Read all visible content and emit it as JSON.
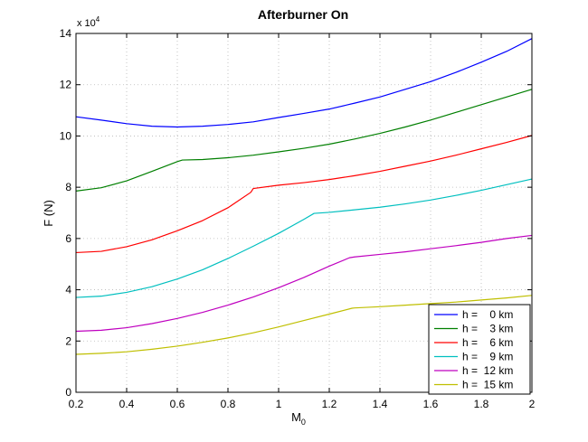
{
  "chart_data": {
    "type": "line",
    "title": "Afterburner On",
    "xlabel": "M",
    "xlabel_sub": "0",
    "ylabel": "F (N)",
    "y_multiplier": "x 10",
    "y_multiplier_exp": "4",
    "xlim": [
      0.2,
      2.0
    ],
    "ylim": [
      0,
      14
    ],
    "x_ticks": [
      "0.2",
      "0.4",
      "0.6",
      "0.8",
      "1",
      "1.2",
      "1.4",
      "1.6",
      "1.8",
      "2"
    ],
    "y_ticks": [
      "0",
      "2",
      "4",
      "6",
      "8",
      "10",
      "12",
      "14"
    ],
    "grid": true,
    "legend_position": "bottom-right",
    "series": [
      {
        "name": "h =    0 km",
        "color": "#0000ff",
        "x": [
          0.2,
          0.3,
          0.4,
          0.5,
          0.6,
          0.7,
          0.8,
          0.9,
          1.0,
          1.1,
          1.2,
          1.3,
          1.4,
          1.5,
          1.6,
          1.7,
          1.8,
          1.9,
          2.0
        ],
        "y": [
          10.75,
          10.62,
          10.48,
          10.38,
          10.35,
          10.38,
          10.45,
          10.55,
          10.72,
          10.88,
          11.05,
          11.28,
          11.52,
          11.82,
          12.12,
          12.48,
          12.88,
          13.3,
          13.8
        ]
      },
      {
        "name": "h =    3 km",
        "color": "#007f00",
        "x": [
          0.2,
          0.3,
          0.4,
          0.5,
          0.6,
          0.62,
          0.7,
          0.8,
          0.9,
          1.0,
          1.1,
          1.2,
          1.3,
          1.4,
          1.5,
          1.6,
          1.7,
          1.8,
          1.9,
          2.0
        ],
        "y": [
          7.85,
          7.98,
          8.25,
          8.62,
          9.0,
          9.06,
          9.08,
          9.15,
          9.25,
          9.38,
          9.52,
          9.68,
          9.88,
          10.1,
          10.35,
          10.62,
          10.92,
          11.22,
          11.52,
          11.82
        ]
      },
      {
        "name": "h =    6 km",
        "color": "#ff0000",
        "x": [
          0.2,
          0.3,
          0.4,
          0.5,
          0.6,
          0.7,
          0.8,
          0.89,
          0.9,
          1.0,
          1.1,
          1.2,
          1.3,
          1.4,
          1.5,
          1.6,
          1.7,
          1.8,
          1.9,
          2.0
        ],
        "y": [
          5.45,
          5.5,
          5.68,
          5.95,
          6.3,
          6.7,
          7.2,
          7.8,
          7.95,
          8.08,
          8.18,
          8.3,
          8.45,
          8.62,
          8.82,
          9.02,
          9.25,
          9.5,
          9.75,
          10.02
        ]
      },
      {
        "name": "h =    9 km",
        "color": "#00bfbf",
        "x": [
          0.2,
          0.3,
          0.4,
          0.5,
          0.6,
          0.7,
          0.8,
          0.9,
          1.0,
          1.1,
          1.14,
          1.2,
          1.3,
          1.4,
          1.5,
          1.6,
          1.7,
          1.8,
          1.9,
          2.0
        ],
        "y": [
          3.7,
          3.75,
          3.9,
          4.12,
          4.42,
          4.78,
          5.22,
          5.7,
          6.2,
          6.75,
          6.98,
          7.02,
          7.12,
          7.22,
          7.35,
          7.5,
          7.68,
          7.88,
          8.1,
          8.32
        ]
      },
      {
        "name": "h =  12 km",
        "color": "#bf00bf",
        "x": [
          0.2,
          0.3,
          0.4,
          0.5,
          0.6,
          0.7,
          0.8,
          0.9,
          1.0,
          1.1,
          1.2,
          1.28,
          1.3,
          1.4,
          1.5,
          1.6,
          1.7,
          1.8,
          1.9,
          2.0
        ],
        "y": [
          2.38,
          2.42,
          2.52,
          2.68,
          2.88,
          3.12,
          3.4,
          3.72,
          4.08,
          4.48,
          4.92,
          5.25,
          5.28,
          5.38,
          5.48,
          5.6,
          5.72,
          5.85,
          6.0,
          6.12
        ]
      },
      {
        "name": "h =  15 km",
        "color": "#bfbf00",
        "x": [
          0.2,
          0.3,
          0.4,
          0.5,
          0.6,
          0.7,
          0.8,
          0.9,
          1.0,
          1.1,
          1.2,
          1.29,
          1.3,
          1.4,
          1.5,
          1.6,
          1.7,
          1.8,
          1.9,
          2.0
        ],
        "y": [
          1.48,
          1.52,
          1.58,
          1.68,
          1.8,
          1.95,
          2.12,
          2.32,
          2.55,
          2.8,
          3.05,
          3.28,
          3.29,
          3.34,
          3.4,
          3.46,
          3.52,
          3.6,
          3.68,
          3.78
        ]
      }
    ]
  }
}
